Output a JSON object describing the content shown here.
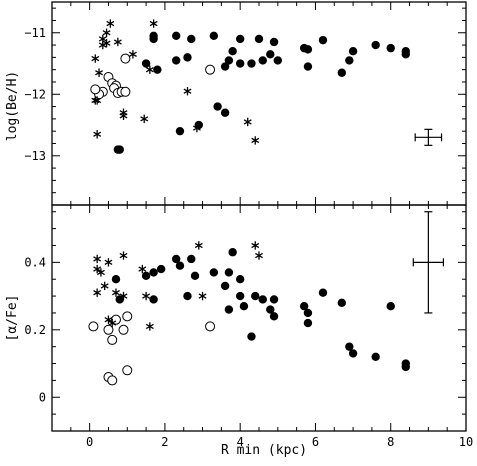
{
  "chart_data": [
    {
      "type": "scatter",
      "xlabel": "",
      "ylabel": "log(Be/H)",
      "xlim": [
        -1,
        10
      ],
      "ylim": [
        -13.8,
        -10.5
      ],
      "xticks": [
        0,
        2,
        4,
        6,
        8,
        10
      ],
      "yticks": [
        -11,
        -12,
        -13
      ],
      "ytick_labels": [
        "−11",
        "−12",
        "−13"
      ],
      "xtick_labels_shown": false,
      "errorbar": {
        "x": 9.0,
        "y": -12.7,
        "xerr": 0.35,
        "yerr": 0.13
      },
      "series": [
        {
          "marker": "filled-circle",
          "points": [
            [
              1.7,
              -11.05
            ],
            [
              1.7,
              -11.1
            ],
            [
              2.3,
              -11.05
            ],
            [
              2.7,
              -11.1
            ],
            [
              3.3,
              -11.05
            ],
            [
              4.0,
              -11.1
            ],
            [
              4.5,
              -11.1
            ],
            [
              4.9,
              -11.15
            ],
            [
              5.7,
              -11.25
            ],
            [
              5.8,
              -11.27
            ],
            [
              6.2,
              -11.12
            ],
            [
              7.6,
              -11.2
            ],
            [
              8.0,
              -11.25
            ],
            [
              8.4,
              -11.3
            ],
            [
              8.4,
              -11.35
            ],
            [
              1.5,
              -11.5
            ],
            [
              1.8,
              -11.6
            ],
            [
              2.3,
              -11.45
            ],
            [
              2.6,
              -11.4
            ],
            [
              3.2,
              -11.6
            ],
            [
              3.6,
              -11.55
            ],
            [
              3.8,
              -11.3
            ],
            [
              3.7,
              -11.45
            ],
            [
              4.0,
              -11.5
            ],
            [
              4.3,
              -11.5
            ],
            [
              4.6,
              -11.45
            ],
            [
              4.8,
              -11.35
            ],
            [
              5.0,
              -11.45
            ],
            [
              5.8,
              -11.55
            ],
            [
              6.7,
              -11.65
            ],
            [
              6.9,
              -11.45
            ],
            [
              7.0,
              -11.3
            ],
            [
              3.4,
              -12.2
            ],
            [
              3.6,
              -12.3
            ],
            [
              2.4,
              -12.6
            ],
            [
              2.9,
              -12.5
            ],
            [
              0.75,
              -12.9
            ],
            [
              0.8,
              -12.9
            ]
          ]
        },
        {
          "marker": "open-circle",
          "points": [
            [
              0.95,
              -11.42
            ],
            [
              3.2,
              -11.6
            ],
            [
              0.5,
              -11.72
            ],
            [
              0.6,
              -11.82
            ],
            [
              0.7,
              -11.86
            ],
            [
              0.65,
              -11.9
            ],
            [
              0.75,
              -11.98
            ],
            [
              0.85,
              -11.96
            ],
            [
              0.95,
              -11.96
            ],
            [
              0.35,
              -11.96
            ],
            [
              0.25,
              -12.0
            ],
            [
              0.15,
              -11.92
            ]
          ]
        },
        {
          "marker": "asterisk",
          "points": [
            [
              0.55,
              -10.85
            ],
            [
              1.7,
              -10.85
            ],
            [
              0.45,
              -11.0
            ],
            [
              0.35,
              -11.1
            ],
            [
              0.35,
              -11.2
            ],
            [
              0.45,
              -11.17
            ],
            [
              0.75,
              -11.15
            ],
            [
              0.15,
              -11.42
            ],
            [
              1.15,
              -11.35
            ],
            [
              0.25,
              -11.65
            ],
            [
              1.6,
              -11.6
            ],
            [
              2.6,
              -11.95
            ],
            [
              0.15,
              -12.1
            ],
            [
              0.2,
              -12.1
            ],
            [
              0.9,
              -12.3
            ],
            [
              0.9,
              -12.35
            ],
            [
              1.45,
              -12.4
            ],
            [
              2.85,
              -12.55
            ],
            [
              4.2,
              -12.45
            ],
            [
              4.4,
              -12.75
            ],
            [
              0.2,
              -12.65
            ]
          ]
        }
      ]
    },
    {
      "type": "scatter",
      "xlabel": "R min (kpc)",
      "ylabel": "[α/Fe]",
      "xlim": [
        -1,
        10
      ],
      "ylim": [
        -0.1,
        0.57
      ],
      "xticks": [
        0,
        2,
        4,
        6,
        8,
        10
      ],
      "xtick_labels": [
        "0",
        "2",
        "4",
        "6",
        "8",
        "10"
      ],
      "yticks": [
        0,
        0.2,
        0.4
      ],
      "ytick_labels": [
        "0",
        "0.2",
        "0.4"
      ],
      "errorbar": {
        "x": 9.0,
        "y": 0.4,
        "xerr": 0.4,
        "yerr": 0.15
      },
      "series": [
        {
          "marker": "filled-circle",
          "points": [
            [
              0.7,
              0.35
            ],
            [
              0.8,
              0.29
            ],
            [
              1.5,
              0.36
            ],
            [
              1.7,
              0.37
            ],
            [
              1.7,
              0.29
            ],
            [
              1.9,
              0.38
            ],
            [
              2.3,
              0.41
            ],
            [
              2.4,
              0.39
            ],
            [
              2.6,
              0.3
            ],
            [
              2.7,
              0.41
            ],
            [
              2.8,
              0.36
            ],
            [
              3.3,
              0.37
            ],
            [
              3.6,
              0.33
            ],
            [
              3.7,
              0.37
            ],
            [
              3.8,
              0.43
            ],
            [
              3.7,
              0.26
            ],
            [
              4.0,
              0.35
            ],
            [
              4.0,
              0.3
            ],
            [
              4.1,
              0.27
            ],
            [
              4.3,
              0.18
            ],
            [
              4.4,
              0.3
            ],
            [
              4.6,
              0.29
            ],
            [
              4.8,
              0.26
            ],
            [
              4.9,
              0.24
            ],
            [
              4.9,
              0.29
            ],
            [
              5.7,
              0.27
            ],
            [
              5.8,
              0.22
            ],
            [
              5.8,
              0.25
            ],
            [
              6.2,
              0.31
            ],
            [
              6.7,
              0.28
            ],
            [
              6.9,
              0.15
            ],
            [
              7.0,
              0.13
            ],
            [
              7.6,
              0.12
            ],
            [
              8.0,
              0.27
            ],
            [
              8.4,
              0.1
            ],
            [
              8.4,
              0.09
            ]
          ]
        },
        {
          "marker": "open-circle",
          "points": [
            [
              0.1,
              0.21
            ],
            [
              0.5,
              0.2
            ],
            [
              0.6,
              0.17
            ],
            [
              0.7,
              0.23
            ],
            [
              0.9,
              0.2
            ],
            [
              1.0,
              0.24
            ],
            [
              1.0,
              0.08
            ],
            [
              0.5,
              0.06
            ],
            [
              0.6,
              0.05
            ],
            [
              3.2,
              0.21
            ]
          ]
        },
        {
          "marker": "asterisk",
          "points": [
            [
              0.2,
              0.41
            ],
            [
              0.2,
              0.38
            ],
            [
              0.3,
              0.37
            ],
            [
              0.5,
              0.4
            ],
            [
              0.9,
              0.42
            ],
            [
              0.2,
              0.31
            ],
            [
              0.4,
              0.33
            ],
            [
              0.7,
              0.31
            ],
            [
              0.9,
              0.3
            ],
            [
              1.4,
              0.38
            ],
            [
              1.5,
              0.3
            ],
            [
              1.6,
              0.21
            ],
            [
              0.5,
              0.23
            ],
            [
              0.6,
              0.22
            ],
            [
              2.9,
              0.45
            ],
            [
              3.0,
              0.3
            ],
            [
              4.4,
              0.45
            ],
            [
              4.5,
              0.42
            ]
          ]
        }
      ]
    }
  ]
}
